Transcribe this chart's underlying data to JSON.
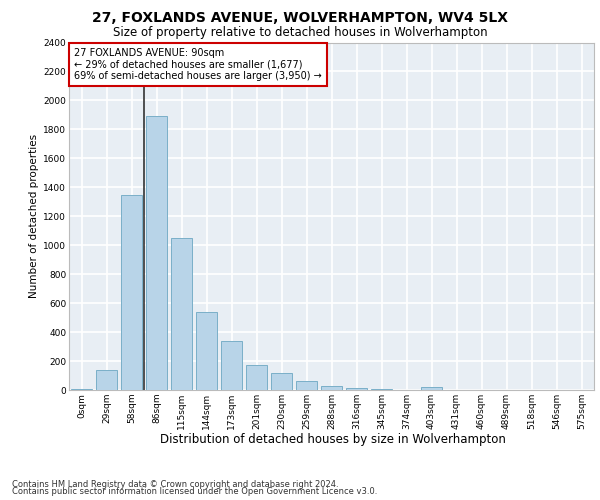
{
  "title": "27, FOXLANDS AVENUE, WOLVERHAMPTON, WV4 5LX",
  "subtitle": "Size of property relative to detached houses in Wolverhampton",
  "xlabel": "Distribution of detached houses by size in Wolverhampton",
  "ylabel": "Number of detached properties",
  "categories": [
    "0sqm",
    "29sqm",
    "58sqm",
    "86sqm",
    "115sqm",
    "144sqm",
    "173sqm",
    "201sqm",
    "230sqm",
    "259sqm",
    "288sqm",
    "316sqm",
    "345sqm",
    "374sqm",
    "403sqm",
    "431sqm",
    "460sqm",
    "489sqm",
    "518sqm",
    "546sqm",
    "575sqm"
  ],
  "values": [
    10,
    135,
    1350,
    1890,
    1050,
    540,
    340,
    170,
    115,
    60,
    30,
    15,
    5,
    0,
    20,
    0,
    0,
    0,
    0,
    0,
    2
  ],
  "bar_color": "#b8d4e8",
  "bar_edge_color": "#7aafc8",
  "annotation_line1": "27 FOXLANDS AVENUE: 90sqm",
  "annotation_line2": "← 29% of detached houses are smaller (1,677)",
  "annotation_line3": "69% of semi-detached houses are larger (3,950) →",
  "annotation_box_color": "#cc0000",
  "vline_color": "#333333",
  "ylim": [
    0,
    2400
  ],
  "yticks": [
    0,
    200,
    400,
    600,
    800,
    1000,
    1200,
    1400,
    1600,
    1800,
    2000,
    2200,
    2400
  ],
  "background_color": "#e8eef4",
  "grid_color": "#ffffff",
  "footer_line1": "Contains HM Land Registry data © Crown copyright and database right 2024.",
  "footer_line2": "Contains public sector information licensed under the Open Government Licence v3.0.",
  "title_fontsize": 10,
  "subtitle_fontsize": 8.5,
  "xlabel_fontsize": 8.5,
  "ylabel_fontsize": 7.5,
  "tick_fontsize": 6.5,
  "footer_fontsize": 6,
  "annotation_fontsize": 7
}
